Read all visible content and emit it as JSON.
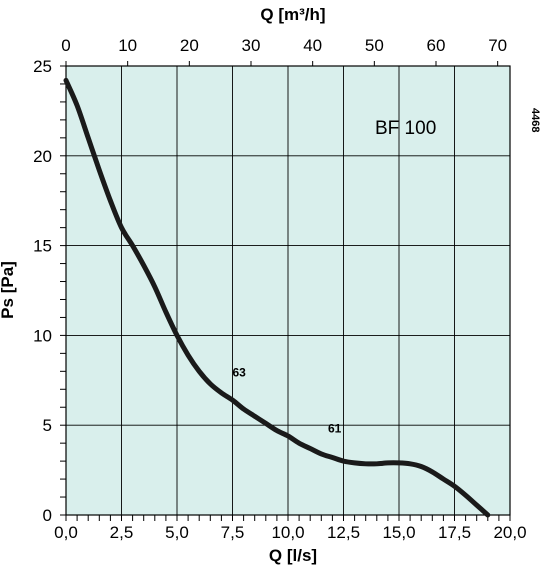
{
  "chart_data": {
    "type": "line",
    "title": "BF 100",
    "figure_code": "4468",
    "xlabel": "Q [l/s]",
    "x2label": "Q [m³/h]",
    "ylabel": "Ps [Pa]",
    "xlim": [
      0,
      20
    ],
    "x2lim": [
      0,
      72
    ],
    "ylim": [
      0,
      25
    ],
    "x_ticks": [
      "0,0",
      "2,5",
      "5,0",
      "7,5",
      "10,0",
      "12,5",
      "15,0",
      "17,5",
      "20,0"
    ],
    "x_tick_values": [
      0,
      2.5,
      5,
      7.5,
      10,
      12.5,
      15,
      17.5,
      20
    ],
    "x2_ticks": [
      "0",
      "10",
      "20",
      "30",
      "40",
      "50",
      "60",
      "70"
    ],
    "x2_tick_values": [
      0,
      10,
      20,
      30,
      40,
      50,
      60,
      70
    ],
    "y_ticks": [
      "0",
      "5",
      "10",
      "15",
      "20",
      "25"
    ],
    "y_tick_values": [
      0,
      5,
      10,
      15,
      20,
      25
    ],
    "grid": true,
    "colors": {
      "plot_background": "#d9efec",
      "grid": "#000000",
      "line": "#1a1a1a"
    },
    "series": [
      {
        "x": [
          0,
          0.5,
          1,
          1.5,
          2,
          2.5,
          3,
          3.5,
          4,
          4.5,
          5,
          5.5,
          6,
          6.5,
          7,
          7.5,
          8,
          8.5,
          9,
          9.5,
          10,
          10.5,
          11,
          11.5,
          12,
          12.5,
          13,
          13.5,
          14,
          14.5,
          15,
          15.5,
          16,
          16.5,
          17,
          17.5,
          18,
          18.5,
          19
        ],
        "y": [
          24.2,
          22.8,
          21.0,
          19.2,
          17.5,
          16.0,
          15.0,
          13.9,
          12.7,
          11.3,
          10.0,
          8.9,
          8.0,
          7.3,
          6.8,
          6.4,
          5.9,
          5.5,
          5.1,
          4.7,
          4.4,
          4.0,
          3.7,
          3.4,
          3.2,
          3.0,
          2.9,
          2.85,
          2.85,
          2.9,
          2.9,
          2.85,
          2.7,
          2.4,
          2.0,
          1.6,
          1.1,
          0.55,
          0
        ]
      }
    ],
    "annotations": [
      {
        "text": "63",
        "x": 7.5,
        "y": 7.7
      },
      {
        "text": "61",
        "x": 11.8,
        "y": 4.6
      }
    ]
  }
}
